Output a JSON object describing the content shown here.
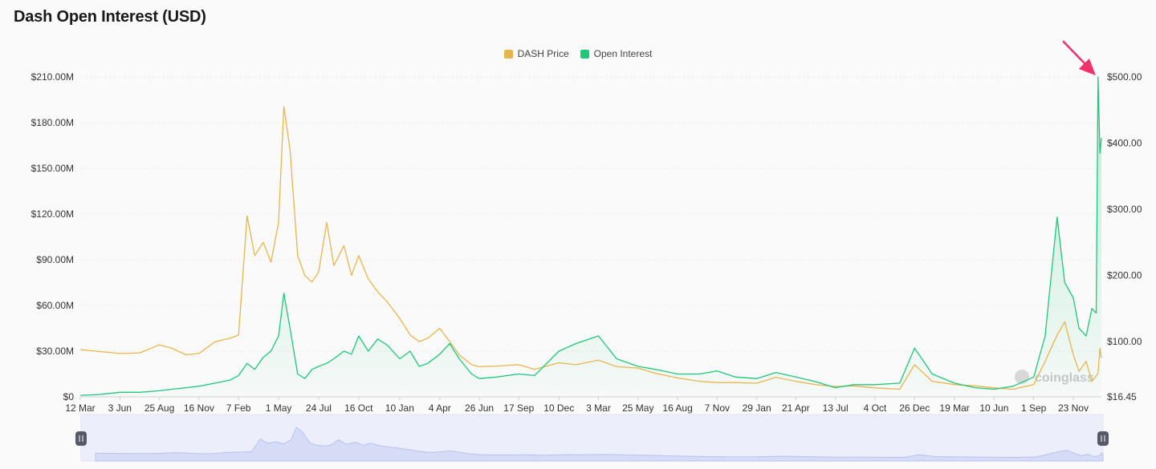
{
  "title": "Dash Open Interest (USD)",
  "colors": {
    "price": "#e8b54d",
    "oi": "#1fc77b",
    "arrow": "#f2306a",
    "navigator": "#d6dcf5"
  },
  "chart_data": {
    "type": "line",
    "series": [
      {
        "name": "DASH Price",
        "axis": "right",
        "x": [
          "2019-03-12",
          "2019-04-20",
          "2019-06-03",
          "2019-07-15",
          "2019-08-25",
          "2019-09-20",
          "2019-10-20",
          "2019-11-16",
          "2019-12-20",
          "2020-01-20",
          "2020-02-07",
          "2020-02-25",
          "2020-03-12",
          "2020-03-30",
          "2020-04-15",
          "2020-05-01",
          "2020-05-12",
          "2020-05-25",
          "2020-06-10",
          "2020-06-25",
          "2020-07-10",
          "2020-07-24",
          "2020-08-10",
          "2020-08-25",
          "2020-09-15",
          "2020-10-01",
          "2020-10-16",
          "2020-11-05",
          "2020-11-25",
          "2020-12-15",
          "2021-01-10",
          "2021-02-01",
          "2021-02-20",
          "2021-03-10",
          "2021-04-04",
          "2021-04-25",
          "2021-05-15",
          "2021-06-10",
          "2021-06-26",
          "2021-08-01",
          "2021-09-17",
          "2021-10-20",
          "2021-12-10",
          "2022-01-15",
          "2022-03-03",
          "2022-04-10",
          "2022-05-25",
          "2022-07-01",
          "2022-08-16",
          "2022-10-01",
          "2022-11-07",
          "2022-12-15",
          "2023-01-29",
          "2023-03-10",
          "2023-04-21",
          "2023-06-01",
          "2023-07-13",
          "2023-08-20",
          "2023-10-04",
          "2023-11-25",
          "2023-12-26",
          "2024-02-01",
          "2024-03-19",
          "2024-05-01",
          "2024-06-10",
          "2024-07-20",
          "2024-09-01",
          "2024-09-25",
          "2024-10-20",
          "2024-11-05",
          "2024-11-23",
          "2024-12-05",
          "2024-12-20",
          "2025-01-01",
          "2025-01-10",
          "2025-01-14",
          "2025-01-18",
          "2025-01-21"
        ],
        "values": [
          88,
          85,
          82,
          83,
          95,
          90,
          80,
          82,
          100,
          105,
          110,
          290,
          230,
          250,
          220,
          280,
          455,
          390,
          230,
          200,
          190,
          205,
          280,
          215,
          245,
          200,
          230,
          195,
          175,
          160,
          135,
          110,
          100,
          105,
          120,
          100,
          80,
          65,
          62,
          63,
          65,
          58,
          68,
          65,
          72,
          62,
          60,
          52,
          45,
          40,
          38,
          38,
          37,
          46,
          40,
          35,
          32,
          33,
          30,
          28,
          65,
          40,
          35,
          33,
          30,
          28,
          35,
          70,
          110,
          130,
          80,
          55,
          70,
          40,
          48,
          52,
          90,
          75
        ]
      },
      {
        "name": "Open Interest",
        "axis": "left",
        "x": [
          "2019-03-12",
          "2019-04-20",
          "2019-06-03",
          "2019-07-15",
          "2019-08-25",
          "2019-09-20",
          "2019-10-20",
          "2019-11-16",
          "2019-12-20",
          "2020-01-20",
          "2020-02-07",
          "2020-02-25",
          "2020-03-12",
          "2020-03-30",
          "2020-04-15",
          "2020-05-01",
          "2020-05-12",
          "2020-05-25",
          "2020-06-10",
          "2020-06-25",
          "2020-07-10",
          "2020-07-24",
          "2020-08-10",
          "2020-08-25",
          "2020-09-15",
          "2020-10-01",
          "2020-10-16",
          "2020-11-05",
          "2020-11-25",
          "2020-12-15",
          "2021-01-10",
          "2021-02-01",
          "2021-02-20",
          "2021-03-10",
          "2021-04-04",
          "2021-04-25",
          "2021-05-15",
          "2021-06-10",
          "2021-06-26",
          "2021-08-01",
          "2021-09-17",
          "2021-10-20",
          "2021-12-10",
          "2022-01-15",
          "2022-03-03",
          "2022-04-10",
          "2022-05-25",
          "2022-07-01",
          "2022-08-16",
          "2022-10-01",
          "2022-11-07",
          "2022-12-15",
          "2023-01-29",
          "2023-03-10",
          "2023-04-21",
          "2023-06-01",
          "2023-07-13",
          "2023-08-20",
          "2023-10-04",
          "2023-11-25",
          "2023-12-26",
          "2024-02-01",
          "2024-03-19",
          "2024-05-01",
          "2024-06-10",
          "2024-07-20",
          "2024-09-01",
          "2024-09-25",
          "2024-10-20",
          "2024-11-05",
          "2024-11-23",
          "2024-12-05",
          "2024-12-20",
          "2025-01-01",
          "2025-01-10",
          "2025-01-14",
          "2025-01-18",
          "2025-01-21"
        ],
        "values": [
          1,
          1.5,
          3,
          3,
          4,
          5,
          6,
          7,
          9,
          11,
          14,
          22,
          18,
          26,
          30,
          40,
          68,
          45,
          15,
          12,
          18,
          20,
          22,
          25,
          30,
          28,
          40,
          30,
          38,
          34,
          25,
          30,
          20,
          22,
          28,
          35,
          25,
          15,
          12,
          13,
          15,
          14,
          30,
          35,
          40,
          25,
          20,
          18,
          15,
          15,
          17,
          13,
          12,
          16,
          13,
          10,
          6,
          8,
          8,
          9,
          32,
          15,
          9,
          6,
          5,
          7,
          13,
          40,
          118,
          75,
          65,
          45,
          40,
          58,
          55,
          210,
          160,
          170
        ]
      }
    ],
    "x_range": [
      "2019-03-12",
      "2025-01-21"
    ],
    "x_tick_labels": [
      "12 Mar",
      "3 Jun",
      "25 Aug",
      "16 Nov",
      "7 Feb",
      "1 May",
      "24 Jul",
      "16 Oct",
      "10 Jan",
      "4 Apr",
      "26 Jun",
      "17 Sep",
      "10 Dec",
      "3 Mar",
      "25 May",
      "16 Aug",
      "7 Nov",
      "29 Jan",
      "21 Apr",
      "13 Jul",
      "4 Oct",
      "26 Dec",
      "19 Mar",
      "10 Jun",
      "1 Sep",
      "23 Nov"
    ],
    "x_tick_dates": [
      "2019-03-12",
      "2019-06-03",
      "2019-08-25",
      "2019-11-16",
      "2020-02-07",
      "2020-05-01",
      "2020-07-24",
      "2020-10-16",
      "2021-01-10",
      "2021-04-04",
      "2021-06-26",
      "2021-09-17",
      "2021-12-10",
      "2022-03-03",
      "2022-05-25",
      "2022-08-16",
      "2022-11-07",
      "2023-01-29",
      "2023-04-21",
      "2023-07-13",
      "2023-10-04",
      "2023-12-26",
      "2024-03-19",
      "2024-06-10",
      "2024-09-01",
      "2024-11-23"
    ],
    "y_left": {
      "ticks": [
        0,
        30,
        60,
        90,
        120,
        150,
        180,
        210
      ],
      "tick_labels": [
        "$0",
        "$30.00M",
        "$60.00M",
        "$90.00M",
        "$120.00M",
        "$150.00M",
        "$180.00M",
        "$210.00M"
      ],
      "range": [
        0,
        210
      ]
    },
    "y_right": {
      "tick_values": [
        16.45,
        100,
        200,
        300,
        400,
        500
      ],
      "tick_labels": [
        "$16.45",
        "$100.00",
        "$200.00",
        "$300.00",
        "$400.00",
        "$500.00"
      ],
      "range": [
        16.45,
        500
      ]
    },
    "legend": {
      "position": "top-center",
      "items": [
        "DASH Price",
        "Open Interest"
      ]
    },
    "grid": true,
    "watermark": "coinglass",
    "navigator": true
  }
}
